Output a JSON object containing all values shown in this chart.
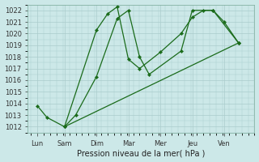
{
  "background_color": "#cce8e8",
  "grid_color": "#aacccc",
  "line_color": "#1a6b1a",
  "xlabel": "Pression niveau de la mer( hPa )",
  "x_labels": [
    "Lun",
    "Sam",
    "Dim",
    "Mar",
    "Mer",
    "Jeu",
    "Ven"
  ],
  "ylim": [
    1011.5,
    1022.5
  ],
  "yticks": [
    1012,
    1013,
    1014,
    1015,
    1016,
    1017,
    1018,
    1019,
    1020,
    1021,
    1022
  ],
  "line1_x": [
    0.0,
    0.3,
    0.85,
    1.85,
    2.2,
    2.5,
    2.85,
    3.2,
    3.85,
    4.5,
    4.85,
    5.2,
    5.5,
    5.85,
    6.3
  ],
  "line1_y": [
    1013.8,
    1012.8,
    1012.0,
    1020.3,
    1021.7,
    1022.3,
    1017.8,
    1017.0,
    1018.4,
    1020.0,
    1021.4,
    1022.0,
    1022.0,
    1021.0,
    1019.2
  ],
  "line2_x": [
    0.85,
    1.2,
    1.85,
    2.5,
    2.85,
    3.2,
    3.5,
    4.5,
    4.85,
    5.5,
    6.3
  ],
  "line2_y": [
    1012.0,
    1013.0,
    1016.3,
    1021.3,
    1022.0,
    1018.0,
    1016.5,
    1018.5,
    1022.0,
    1022.0,
    1019.2
  ],
  "line3_x": [
    0.85,
    6.3
  ],
  "line3_y": [
    1012.0,
    1019.2
  ],
  "xlim": [
    -0.3,
    6.8
  ],
  "xtick_pos": [
    0.0,
    0.85,
    1.85,
    2.85,
    3.85,
    4.85,
    5.85
  ],
  "label_fontsize": 6,
  "xlabel_fontsize": 7,
  "linewidth": 0.9,
  "markersize": 2.2
}
